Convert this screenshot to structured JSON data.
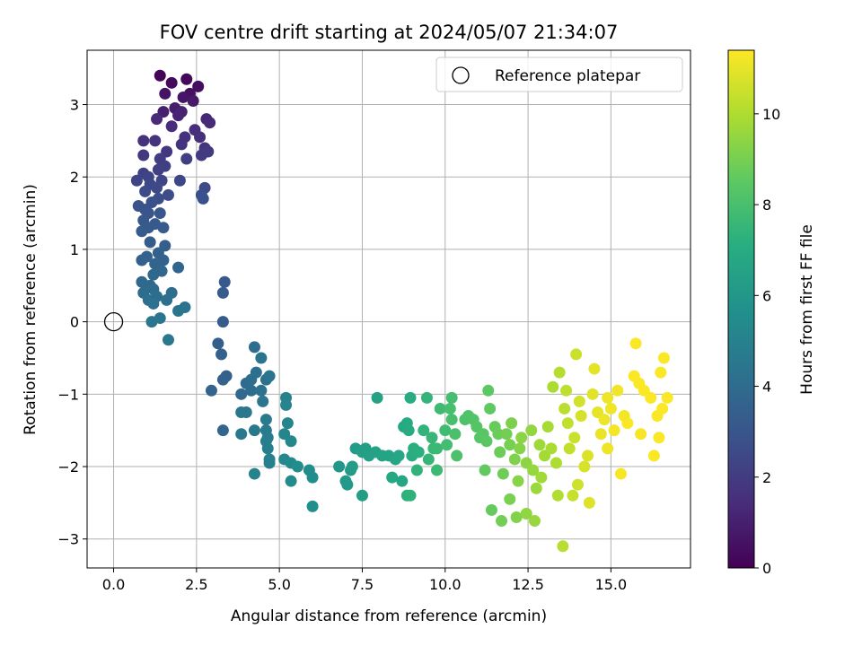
{
  "chart_data": {
    "type": "scatter",
    "title": "FOV centre drift starting at 2024/05/07 21:34:07",
    "xlabel": "Angular distance from reference (arcmin)",
    "ylabel": "Rotation from reference (arcmin)",
    "xlim": [
      -0.8,
      17.4
    ],
    "ylim": [
      -3.4,
      3.75
    ],
    "xticks": [
      0.0,
      2.5,
      5.0,
      7.5,
      10.0,
      12.5,
      15.0
    ],
    "xtick_labels": [
      "0.0",
      "2.5",
      "5.0",
      "7.5",
      "10.0",
      "12.5",
      "15.0"
    ],
    "yticks": [
      -3,
      -2,
      -1,
      0,
      1,
      2,
      3
    ],
    "ytick_labels": [
      "−3",
      "−2",
      "−1",
      "0",
      "1",
      "2",
      "3"
    ],
    "grid": true,
    "legend": {
      "position": "top-right",
      "entries": [
        {
          "label": "Reference platepar",
          "marker": "open-circle"
        }
      ]
    },
    "reference_point": {
      "x": 0.0,
      "y": 0.0
    },
    "colorbar": {
      "label": "Hours from first FF file",
      "colormap": "viridis",
      "range": [
        0,
        11.4
      ],
      "ticks": [
        0,
        2,
        4,
        6,
        8,
        10
      ],
      "tick_labels": [
        "0",
        "2",
        "4",
        "6",
        "8",
        "10"
      ]
    },
    "points": [
      [
        1.4,
        3.4,
        0.1
      ],
      [
        2.2,
        3.35,
        0.2
      ],
      [
        1.75,
        3.3,
        0.3
      ],
      [
        2.55,
        3.25,
        0.4
      ],
      [
        2.3,
        3.15,
        0.5
      ],
      [
        1.55,
        3.15,
        0.6
      ],
      [
        2.1,
        3.1,
        0.7
      ],
      [
        2.4,
        3.05,
        0.8
      ],
      [
        1.85,
        2.95,
        0.9
      ],
      [
        1.5,
        2.9,
        1.0
      ],
      [
        2.05,
        2.9,
        1.1
      ],
      [
        1.95,
        2.85,
        1.2
      ],
      [
        2.8,
        2.8,
        1.3
      ],
      [
        1.3,
        2.8,
        1.35
      ],
      [
        2.9,
        2.75,
        1.4
      ],
      [
        1.75,
        2.7,
        1.45
      ],
      [
        2.45,
        2.65,
        1.5
      ],
      [
        2.6,
        2.55,
        1.55
      ],
      [
        2.15,
        2.55,
        1.6
      ],
      [
        0.9,
        2.5,
        1.65
      ],
      [
        1.25,
        2.5,
        1.7
      ],
      [
        2.05,
        2.45,
        1.75
      ],
      [
        2.75,
        2.4,
        1.8
      ],
      [
        1.6,
        2.35,
        1.85
      ],
      [
        0.9,
        2.3,
        1.9
      ],
      [
        2.85,
        2.35,
        1.95
      ],
      [
        2.65,
        2.3,
        2.0
      ],
      [
        1.4,
        2.25,
        2.05
      ],
      [
        2.2,
        2.25,
        2.1
      ],
      [
        1.55,
        2.15,
        2.15
      ],
      [
        1.35,
        2.1,
        2.2
      ],
      [
        0.9,
        2.05,
        2.25
      ],
      [
        1.05,
        2.0,
        2.3
      ],
      [
        0.7,
        1.95,
        2.35
      ],
      [
        1.45,
        1.95,
        2.4
      ],
      [
        2.0,
        1.95,
        2.45
      ],
      [
        1.1,
        1.9,
        2.5
      ],
      [
        1.3,
        1.85,
        2.55
      ],
      [
        2.75,
        1.85,
        2.6
      ],
      [
        0.95,
        1.8,
        2.65
      ],
      [
        1.65,
        1.75,
        2.7
      ],
      [
        1.35,
        1.7,
        2.75
      ],
      [
        2.65,
        1.75,
        2.8
      ],
      [
        1.15,
        1.65,
        2.85
      ],
      [
        2.7,
        1.7,
        2.9
      ],
      [
        0.75,
        1.6,
        2.95
      ],
      [
        0.95,
        1.55,
        3.0
      ],
      [
        1.05,
        1.5,
        3.05
      ],
      [
        1.4,
        1.5,
        3.1
      ],
      [
        0.9,
        1.4,
        3.15
      ],
      [
        1.25,
        1.35,
        3.2
      ],
      [
        1.05,
        1.3,
        3.25
      ],
      [
        1.5,
        1.3,
        3.3
      ],
      [
        0.85,
        1.25,
        3.35
      ],
      [
        1.1,
        1.1,
        3.4
      ],
      [
        1.55,
        1.05,
        3.45
      ],
      [
        1.35,
        0.95,
        3.5
      ],
      [
        0.85,
        0.85,
        3.55
      ],
      [
        1.0,
        0.9,
        3.6
      ],
      [
        1.5,
        0.85,
        3.65
      ],
      [
        1.25,
        0.8,
        3.7
      ],
      [
        1.95,
        0.75,
        3.75
      ],
      [
        1.45,
        0.7,
        3.8
      ],
      [
        1.2,
        0.65,
        3.85
      ],
      [
        0.85,
        0.55,
        3.9
      ],
      [
        1.1,
        0.5,
        3.95
      ],
      [
        1.2,
        0.45,
        4.0
      ],
      [
        0.9,
        0.4,
        4.05
      ],
      [
        1.75,
        0.4,
        4.1
      ],
      [
        1.3,
        0.35,
        4.15
      ],
      [
        1.05,
        0.3,
        4.2
      ],
      [
        1.6,
        0.3,
        4.25
      ],
      [
        1.2,
        0.25,
        4.3
      ],
      [
        2.15,
        0.2,
        4.35
      ],
      [
        1.95,
        0.15,
        4.4
      ],
      [
        1.15,
        0.0,
        4.45
      ],
      [
        1.4,
        0.05,
        4.5
      ],
      [
        1.65,
        -0.25,
        4.55
      ],
      [
        3.35,
        0.55,
        3.2
      ],
      [
        3.3,
        0.4,
        3.3
      ],
      [
        3.3,
        0.0,
        3.35
      ],
      [
        3.15,
        -0.3,
        3.45
      ],
      [
        3.25,
        -0.45,
        3.5
      ],
      [
        3.4,
        -0.75,
        3.55
      ],
      [
        3.3,
        -0.8,
        3.6
      ],
      [
        2.95,
        -0.95,
        3.7
      ],
      [
        3.3,
        -1.5,
        3.8
      ],
      [
        3.85,
        -1.0,
        3.9
      ],
      [
        4.0,
        -0.85,
        4.0
      ],
      [
        4.15,
        -0.95,
        4.05
      ],
      [
        4.25,
        -0.35,
        4.1
      ],
      [
        4.15,
        -0.8,
        4.15
      ],
      [
        4.3,
        -0.7,
        4.2
      ],
      [
        4.6,
        -0.8,
        4.25
      ],
      [
        4.45,
        -0.95,
        4.3
      ],
      [
        4.7,
        -0.75,
        4.35
      ],
      [
        4.45,
        -0.5,
        4.4
      ],
      [
        4.5,
        -1.1,
        4.45
      ],
      [
        3.85,
        -1.25,
        4.5
      ],
      [
        4.0,
        -1.25,
        4.55
      ],
      [
        3.85,
        -1.55,
        4.6
      ],
      [
        4.25,
        -1.5,
        4.65
      ],
      [
        4.6,
        -1.35,
        4.7
      ],
      [
        4.6,
        -1.5,
        4.75
      ],
      [
        4.65,
        -1.6,
        4.8
      ],
      [
        4.6,
        -1.65,
        4.85
      ],
      [
        4.65,
        -1.75,
        4.9
      ],
      [
        4.7,
        -1.9,
        4.95
      ],
      [
        4.7,
        -1.95,
        5.0
      ],
      [
        4.25,
        -2.1,
        5.05
      ],
      [
        5.2,
        -1.05,
        5.1
      ],
      [
        5.2,
        -1.15,
        5.15
      ],
      [
        5.25,
        -1.4,
        5.2
      ],
      [
        5.15,
        -1.55,
        5.25
      ],
      [
        5.35,
        -1.65,
        5.3
      ],
      [
        5.15,
        -1.9,
        5.35
      ],
      [
        5.35,
        -1.95,
        5.4
      ],
      [
        5.35,
        -2.2,
        5.45
      ],
      [
        5.55,
        -2.0,
        5.5
      ],
      [
        5.9,
        -2.05,
        5.55
      ],
      [
        6.0,
        -2.15,
        5.6
      ],
      [
        6.0,
        -2.55,
        5.65
      ],
      [
        6.8,
        -2.0,
        6.0
      ],
      [
        7.0,
        -2.2,
        6.1
      ],
      [
        7.05,
        -2.25,
        6.15
      ],
      [
        7.15,
        -2.05,
        6.2
      ],
      [
        7.3,
        -1.75,
        6.25
      ],
      [
        7.2,
        -2.0,
        6.3
      ],
      [
        7.5,
        -2.4,
        6.35
      ],
      [
        7.5,
        -1.8,
        6.4
      ],
      [
        7.6,
        -1.75,
        6.45
      ],
      [
        7.7,
        -1.85,
        6.5
      ],
      [
        7.9,
        -1.8,
        6.55
      ],
      [
        7.95,
        -1.05,
        6.6
      ],
      [
        8.1,
        -1.85,
        6.65
      ],
      [
        8.3,
        -1.85,
        6.7
      ],
      [
        8.5,
        -1.9,
        6.75
      ],
      [
        8.6,
        -1.85,
        6.8
      ],
      [
        8.7,
        -2.2,
        6.85
      ],
      [
        8.4,
        -2.15,
        6.9
      ],
      [
        8.75,
        -1.45,
        6.95
      ],
      [
        8.85,
        -1.4,
        7.0
      ],
      [
        8.9,
        -1.5,
        7.05
      ],
      [
        8.95,
        -1.05,
        7.1
      ],
      [
        9.0,
        -1.85,
        7.15
      ],
      [
        9.05,
        -1.75,
        7.2
      ],
      [
        9.2,
        -1.8,
        7.25
      ],
      [
        8.85,
        -2.4,
        7.3
      ],
      [
        8.95,
        -2.4,
        7.35
      ],
      [
        9.15,
        -2.05,
        7.4
      ],
      [
        9.35,
        -1.5,
        7.45
      ],
      [
        9.45,
        -1.05,
        7.5
      ],
      [
        9.5,
        -1.9,
        7.55
      ],
      [
        9.6,
        -1.6,
        7.6
      ],
      [
        9.65,
        -1.75,
        7.65
      ],
      [
        9.75,
        -1.75,
        7.7
      ],
      [
        9.75,
        -2.05,
        7.75
      ],
      [
        9.85,
        -1.2,
        7.8
      ],
      [
        10.0,
        -1.5,
        7.85
      ],
      [
        10.05,
        -1.7,
        7.9
      ],
      [
        10.2,
        -1.05,
        7.95
      ],
      [
        10.15,
        -1.2,
        8.0
      ],
      [
        10.2,
        -1.35,
        8.05
      ],
      [
        10.3,
        -1.55,
        8.1
      ],
      [
        10.35,
        -1.85,
        8.15
      ],
      [
        10.6,
        -1.35,
        8.2
      ],
      [
        10.7,
        -1.3,
        8.25
      ],
      [
        10.85,
        -1.35,
        8.3
      ],
      [
        10.95,
        -1.45,
        8.35
      ],
      [
        11.05,
        -1.6,
        8.4
      ],
      [
        11.15,
        -1.55,
        8.45
      ],
      [
        11.25,
        -1.65,
        8.5
      ],
      [
        11.3,
        -0.95,
        8.55
      ],
      [
        11.35,
        -1.2,
        8.6
      ],
      [
        11.2,
        -2.05,
        8.65
      ],
      [
        11.4,
        -2.6,
        8.7
      ],
      [
        11.5,
        -1.45,
        8.75
      ],
      [
        11.6,
        -1.55,
        8.8
      ],
      [
        11.65,
        -1.8,
        8.85
      ],
      [
        11.75,
        -2.1,
        8.9
      ],
      [
        11.7,
        -2.75,
        8.95
      ],
      [
        11.85,
        -1.55,
        9.0
      ],
      [
        11.95,
        -1.7,
        9.05
      ],
      [
        11.95,
        -2.45,
        9.1
      ],
      [
        12.0,
        -1.4,
        9.15
      ],
      [
        12.1,
        -1.9,
        9.2
      ],
      [
        12.15,
        -2.7,
        9.25
      ],
      [
        12.25,
        -1.75,
        9.3
      ],
      [
        12.2,
        -2.2,
        9.35
      ],
      [
        12.3,
        -1.6,
        9.4
      ],
      [
        12.45,
        -1.95,
        9.45
      ],
      [
        12.45,
        -2.65,
        9.5
      ],
      [
        12.6,
        -1.5,
        9.55
      ],
      [
        12.65,
        -2.05,
        9.6
      ],
      [
        12.7,
        -2.75,
        9.65
      ],
      [
        12.75,
        -2.3,
        9.7
      ],
      [
        12.85,
        -1.7,
        9.75
      ],
      [
        12.9,
        -2.15,
        9.8
      ],
      [
        13.0,
        -1.85,
        9.85
      ],
      [
        13.1,
        -1.45,
        9.9
      ],
      [
        13.2,
        -1.75,
        9.95
      ],
      [
        13.25,
        -0.9,
        10.0
      ],
      [
        13.35,
        -1.95,
        10.05
      ],
      [
        13.4,
        -2.4,
        10.1
      ],
      [
        13.45,
        -0.7,
        10.15
      ],
      [
        13.55,
        -3.1,
        10.2
      ],
      [
        13.6,
        -1.2,
        10.25
      ],
      [
        13.65,
        -0.95,
        10.3
      ],
      [
        13.7,
        -1.4,
        10.35
      ],
      [
        13.75,
        -1.75,
        10.4
      ],
      [
        13.85,
        -2.4,
        10.45
      ],
      [
        13.9,
        -1.6,
        10.5
      ],
      [
        13.95,
        -0.45,
        10.55
      ],
      [
        14.0,
        -2.25,
        10.6
      ],
      [
        14.05,
        -1.1,
        10.65
      ],
      [
        14.1,
        -1.3,
        10.7
      ],
      [
        14.2,
        -2.0,
        10.75
      ],
      [
        14.3,
        -1.85,
        10.8
      ],
      [
        14.35,
        -2.5,
        10.85
      ],
      [
        14.45,
        -1.0,
        10.9
      ],
      [
        14.5,
        -0.65,
        10.95
      ],
      [
        14.6,
        -1.25,
        11.0
      ],
      [
        14.7,
        -1.55,
        11.05
      ],
      [
        14.8,
        -1.35,
        11.1
      ],
      [
        14.9,
        -1.75,
        11.15
      ],
      [
        15.0,
        -1.2,
        11.2
      ],
      [
        15.1,
        -1.5,
        11.25
      ],
      [
        15.3,
        -2.1,
        11.3
      ],
      [
        15.5,
        -1.4,
        11.35
      ],
      [
        15.75,
        -0.3,
        11.35
      ],
      [
        15.7,
        -0.75,
        11.35
      ],
      [
        15.85,
        -0.85,
        11.35
      ],
      [
        16.0,
        -0.95,
        11.35
      ],
      [
        16.2,
        -1.05,
        11.35
      ],
      [
        16.3,
        -1.85,
        11.35
      ],
      [
        16.5,
        -0.7,
        11.35
      ],
      [
        16.55,
        -1.2,
        11.35
      ],
      [
        16.6,
        -0.5,
        11.35
      ],
      [
        16.45,
        -1.6,
        11.35
      ],
      [
        16.7,
        -1.05,
        11.35
      ],
      [
        16.4,
        -1.3,
        11.35
      ],
      [
        15.9,
        -1.55,
        11.3
      ],
      [
        15.4,
        -1.3,
        11.25
      ],
      [
        15.2,
        -0.95,
        11.2
      ],
      [
        14.9,
        -1.05,
        11.1
      ]
    ]
  }
}
